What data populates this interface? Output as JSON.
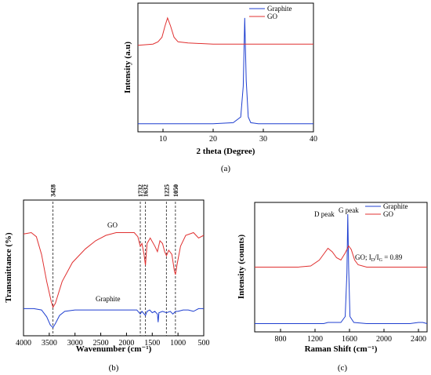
{
  "chart_data": [
    {
      "type": "line",
      "panel": "(a)",
      "xlabel": "2 theta (Degree)",
      "ylabel": "Intensity (a.u)",
      "xlim": [
        5,
        40
      ],
      "xticks": [
        "10",
        "20",
        "30",
        "40"
      ],
      "legend": {
        "placement": "top-right",
        "entries": [
          "Graphite",
          "GO"
        ]
      },
      "series": [
        {
          "name": "Graphite",
          "color": "#1f3fd0",
          "x": [
            5,
            10,
            15,
            20,
            24,
            25.5,
            26,
            26.3,
            26.6,
            27,
            27.5,
            29,
            35,
            40
          ],
          "y": [
            0.02,
            0.02,
            0.02,
            0.02,
            0.03,
            0.08,
            0.35,
            0.95,
            0.4,
            0.08,
            0.03,
            0.02,
            0.02,
            0.02
          ]
        },
        {
          "name": "GO",
          "color": "#e03030",
          "x": [
            5,
            8,
            9,
            9.8,
            10.4,
            10.9,
            11.5,
            12.2,
            13,
            15,
            20,
            25,
            30,
            35,
            40
          ],
          "y": [
            0.71,
            0.72,
            0.74,
            0.78,
            0.88,
            0.95,
            0.88,
            0.78,
            0.74,
            0.73,
            0.72,
            0.72,
            0.72,
            0.72,
            0.72
          ]
        }
      ]
    },
    {
      "type": "line",
      "panel": "(b)",
      "xlabel": "Wavenumber (cm⁻¹)",
      "ylabel": "Transmittance (%)",
      "xlim": [
        4000,
        500
      ],
      "xticks": [
        "4000",
        "3500",
        "3000",
        "2500",
        "2000",
        "1500",
        "1000",
        "500"
      ],
      "peak_labels": [
        {
          "label": "3428",
          "x": 3428
        },
        {
          "label": "1732",
          "x": 1732
        },
        {
          "label": "1632",
          "x": 1632
        },
        {
          "label": "1225",
          "x": 1225
        },
        {
          "label": "1050",
          "x": 1050
        }
      ],
      "series": [
        {
          "name": "GO",
          "color": "#e03030",
          "x": [
            4000,
            3850,
            3750,
            3650,
            3550,
            3460,
            3428,
            3380,
            3250,
            3050,
            2800,
            2600,
            2400,
            2200,
            2000,
            1850,
            1780,
            1732,
            1700,
            1660,
            1632,
            1600,
            1540,
            1450,
            1400,
            1350,
            1300,
            1260,
            1225,
            1180,
            1120,
            1070,
            1050,
            1020,
            950,
            850,
            700,
            600,
            500
          ],
          "y": [
            0.75,
            0.76,
            0.73,
            0.6,
            0.4,
            0.25,
            0.21,
            0.24,
            0.4,
            0.54,
            0.64,
            0.7,
            0.74,
            0.76,
            0.76,
            0.76,
            0.73,
            0.66,
            0.68,
            0.6,
            0.52,
            0.68,
            0.72,
            0.66,
            0.62,
            0.7,
            0.68,
            0.62,
            0.59,
            0.63,
            0.6,
            0.48,
            0.45,
            0.52,
            0.66,
            0.74,
            0.76,
            0.72,
            0.74
          ]
        },
        {
          "name": "Graphite",
          "color": "#1f3fd0",
          "x": [
            4000,
            3800,
            3650,
            3550,
            3480,
            3428,
            3380,
            3300,
            3200,
            3000,
            2800,
            2500,
            2200,
            2000,
            1900,
            1800,
            1732,
            1700,
            1632,
            1600,
            1550,
            1500,
            1450,
            1400,
            1385,
            1370,
            1300,
            1225,
            1150,
            1100,
            1050,
            1000,
            900,
            800,
            700,
            600,
            500
          ],
          "y": [
            0.2,
            0.2,
            0.19,
            0.14,
            0.08,
            0.06,
            0.09,
            0.15,
            0.18,
            0.19,
            0.19,
            0.19,
            0.19,
            0.19,
            0.19,
            0.19,
            0.16,
            0.18,
            0.15,
            0.18,
            0.19,
            0.17,
            0.18,
            0.16,
            0.1,
            0.17,
            0.18,
            0.17,
            0.18,
            0.16,
            0.18,
            0.18,
            0.19,
            0.19,
            0.18,
            0.2,
            0.2
          ]
        }
      ],
      "series_labels": [
        "GO",
        "Graphite"
      ]
    },
    {
      "type": "line",
      "panel": "(c)",
      "xlabel": "Raman Shift (cm⁻¹)",
      "ylabel": "Intensity (counts)",
      "xlim": [
        500,
        2500
      ],
      "xticks": [
        "800",
        "1200",
        "1600",
        "2000",
        "2400"
      ],
      "legend": {
        "placement": "top-right",
        "entries": [
          "Graphite",
          "GO"
        ]
      },
      "annotations": [
        "D peak",
        "G peak",
        "GO; I",
        "D",
        "/I",
        "G",
        " = 0.89"
      ],
      "series": [
        {
          "name": "Graphite",
          "color": "#1f3fd0",
          "x": [
            500,
            800,
            1100,
            1300,
            1350,
            1500,
            1550,
            1570,
            1580,
            1590,
            1605,
            1650,
            1800,
            2100,
            2300,
            2400,
            2450,
            2500
          ],
          "y": [
            0.02,
            0.02,
            0.02,
            0.02,
            0.03,
            0.03,
            0.08,
            0.45,
            0.95,
            0.5,
            0.08,
            0.03,
            0.02,
            0.02,
            0.02,
            0.03,
            0.03,
            0.02
          ]
        },
        {
          "name": "GO",
          "color": "#e03030",
          "x": [
            500,
            800,
            1000,
            1150,
            1250,
            1300,
            1350,
            1400,
            1450,
            1500,
            1550,
            1590,
            1620,
            1660,
            1700,
            1800,
            2000,
            2200,
            2400,
            2500
          ],
          "y": [
            0.5,
            0.5,
            0.5,
            0.51,
            0.56,
            0.61,
            0.66,
            0.63,
            0.58,
            0.56,
            0.62,
            0.68,
            0.65,
            0.56,
            0.52,
            0.5,
            0.5,
            0.5,
            0.5,
            0.5
          ]
        }
      ]
    }
  ]
}
